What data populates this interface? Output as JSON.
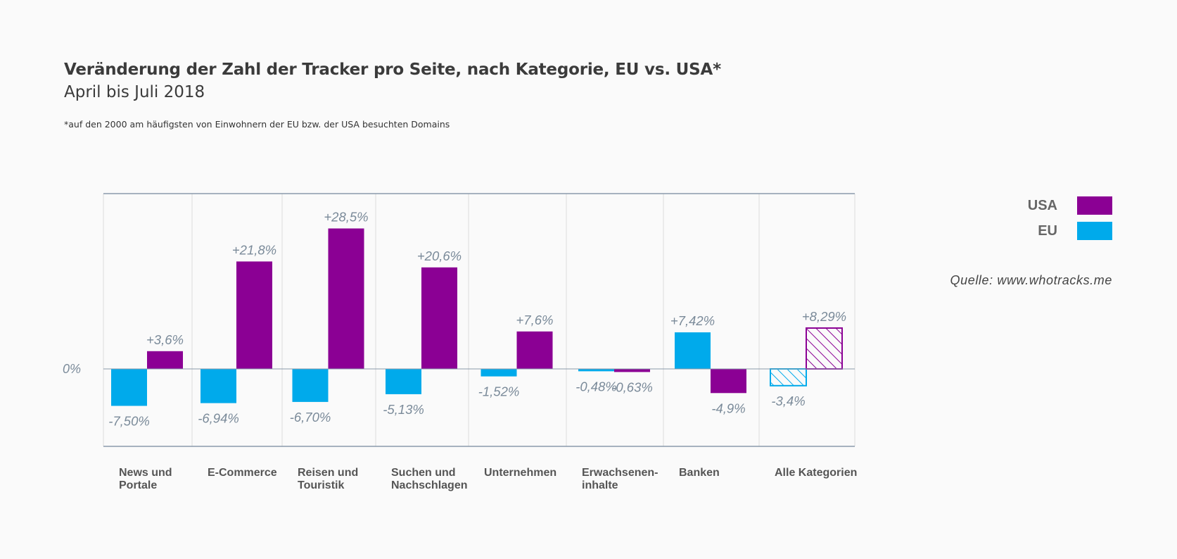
{
  "header": {
    "title": "Veränderung der Zahl der Tracker pro Seite, nach Kategorie, EU vs. USA*",
    "subtitle": "April bis Juli 2018",
    "footnote": "*auf den 2000 am häufigsten von Einwohnern der EU bzw. der USA besuchten Domains"
  },
  "source": "Quelle: www.whotracks.me",
  "legend": [
    {
      "label": "USA",
      "color": "#8b0094"
    },
    {
      "label": "EU",
      "color": "#00aaeb"
    }
  ],
  "chart_data": {
    "type": "bar",
    "categories": [
      [
        "News und",
        "Portale"
      ],
      [
        "E-Commerce"
      ],
      [
        "Reisen und",
        "Touristik"
      ],
      [
        "Suchen und",
        "Nachschlagen"
      ],
      [
        "Unternehmen"
      ],
      [
        "Erwachsenen-",
        "inhalte"
      ],
      [
        "Banken"
      ],
      [
        "Alle Kategorien"
      ]
    ],
    "series": [
      {
        "name": "EU",
        "color": "#00aaeb",
        "values": [
          -7.5,
          -6.94,
          -6.7,
          -5.13,
          -1.52,
          -0.48,
          7.42,
          -3.4
        ],
        "labels": [
          "-7,50%",
          "-6,94%",
          "-6,70%",
          "-5,13%",
          "-1,52%",
          "-0,48%",
          "+7,42%",
          "-3,4%"
        ]
      },
      {
        "name": "USA",
        "color": "#8b0094",
        "values": [
          3.6,
          21.8,
          28.5,
          20.6,
          7.6,
          -0.63,
          -4.9,
          8.29
        ],
        "labels": [
          "+3,6%",
          "+21,8%",
          "+28,5%",
          "+20,6%",
          "+7,6%",
          "-0,63%",
          "-4,9%",
          "+8,29%"
        ]
      }
    ],
    "hatched_category": 7,
    "zero_label": "0%",
    "grid": true
  }
}
